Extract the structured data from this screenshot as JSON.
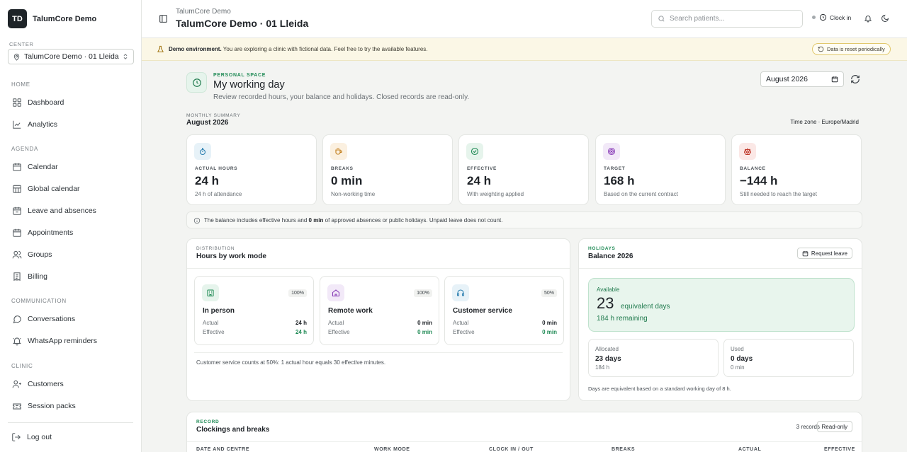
{
  "brand": {
    "initials": "TD",
    "name": "TalumCore Demo"
  },
  "center": {
    "label": "CENTER",
    "value": "TalumCore Demo · 01 Lleida"
  },
  "nav": {
    "home_label": "HOME",
    "home": [
      {
        "label": "Dashboard",
        "icon": "dashboard-icon"
      },
      {
        "label": "Analytics",
        "icon": "chart-icon"
      }
    ],
    "agenda_label": "AGENDA",
    "agenda": [
      {
        "label": "Calendar",
        "icon": "calendar-icon"
      },
      {
        "label": "Global calendar",
        "icon": "grid-calendar-icon"
      },
      {
        "label": "Leave and absences",
        "icon": "calendar-leave-icon"
      },
      {
        "label": "Appointments",
        "icon": "calendar-appointment-icon"
      },
      {
        "label": "Groups",
        "icon": "users-icon"
      },
      {
        "label": "Billing",
        "icon": "receipt-icon"
      }
    ],
    "communication_label": "COMMUNICATION",
    "communication": [
      {
        "label": "Conversations",
        "icon": "chat-icon"
      },
      {
        "label": "WhatsApp reminders",
        "icon": "bell-ring-icon"
      }
    ],
    "clinic_label": "CLINIC",
    "clinic": [
      {
        "label": "Customers",
        "icon": "customers-icon"
      },
      {
        "label": "Session packs",
        "icon": "ticket-icon"
      }
    ],
    "logout": "Log out"
  },
  "topbar": {
    "subtitle": "TalumCore Demo",
    "title": "TalumCore Demo · 01 Lleida",
    "search_placeholder": "Search patients...",
    "clock_in": "Clock in"
  },
  "banner": {
    "bold": "Demo environment.",
    "text": " You are exploring a clinic with fictional data. Feel free to try the available features.",
    "pill": "Data is reset periodically"
  },
  "personal": {
    "label": "PERSONAL SPACE",
    "title": "My working day",
    "description": "Review recorded hours, your balance and holidays. Closed records are read-only.",
    "month": "August 2026"
  },
  "summary": {
    "label": "MONTHLY SUMMARY",
    "month": "August 2026",
    "timezone": "Time zone · Europe/Madrid",
    "cards": [
      {
        "label": "ACTUAL HOURS",
        "value": "24 h",
        "note": "24 h of attendance",
        "icon": "stopwatch-icon",
        "color": "#2b7fb0",
        "bg": "#e7f2f8"
      },
      {
        "label": "BREAKS",
        "value": "0 min",
        "note": "Non-working time",
        "icon": "coffee-icon",
        "color": "#c07a14",
        "bg": "#fbf0e0"
      },
      {
        "label": "EFFECTIVE",
        "value": "24 h",
        "note": "With weighting applied",
        "icon": "check-circle-icon",
        "color": "#1f8a55",
        "bg": "#e6f4ec"
      },
      {
        "label": "TARGET",
        "value": "168 h",
        "note": "Based on the current contract",
        "icon": "target-icon",
        "color": "#8a3fb8",
        "bg": "#f2e9f8"
      },
      {
        "label": "BALANCE",
        "value": "−144 h",
        "note": "Still needed to reach the target",
        "icon": "scale-icon",
        "color": "#c0392b",
        "bg": "#fbe8e6"
      }
    ],
    "note_prefix": "The balance includes effective hours and ",
    "note_bold": "0 min",
    "note_suffix": " of approved absences or public holidays. Unpaid leave does not count."
  },
  "distribution": {
    "label": "DISTRIBUTION",
    "title": "Hours by work mode",
    "modes": [
      {
        "name": "In person",
        "pct": "100%",
        "actual_label": "Actual",
        "actual": "24 h",
        "effective_label": "Effective",
        "effective": "24 h",
        "icon": "building-icon",
        "color": "#1f8a55",
        "bg": "#e6f4ec"
      },
      {
        "name": "Remote work",
        "pct": "100%",
        "actual_label": "Actual",
        "actual": "0 min",
        "effective_label": "Effective",
        "effective": "0 min",
        "icon": "home-icon",
        "color": "#8a3fb8",
        "bg": "#f2e9f8"
      },
      {
        "name": "Customer service",
        "pct": "50%",
        "actual_label": "Actual",
        "actual": "0 min",
        "effective_label": "Effective",
        "effective": "0 min",
        "icon": "headset-icon",
        "color": "#2b7fb0",
        "bg": "#e7f2f8"
      }
    ],
    "footnote": "Customer service counts at 50%: 1 actual hour equals 30 effective minutes."
  },
  "holidays": {
    "label": "HOLIDAYS",
    "title": "Balance 2026",
    "request": "Request leave",
    "available_label": "Available",
    "available_value": "23",
    "available_unit": "equivalent days",
    "remaining": "184 h remaining",
    "allocated_label": "Allocated",
    "allocated_days": "23 days",
    "allocated_hours": "184 h",
    "used_label": "Used",
    "used_days": "0 days",
    "used_hours": "0 min",
    "footnote": "Days are equivalent based on a standard working day of 8 h."
  },
  "record": {
    "label": "RECORD",
    "title": "Clockings and breaks",
    "count": "3 records",
    "readonly": "Read-only",
    "columns": [
      "DATE AND CENTRE",
      "WORK MODE",
      "CLOCK IN / OUT",
      "BREAKS",
      "ACTUAL",
      "EFFECTIVE"
    ]
  }
}
